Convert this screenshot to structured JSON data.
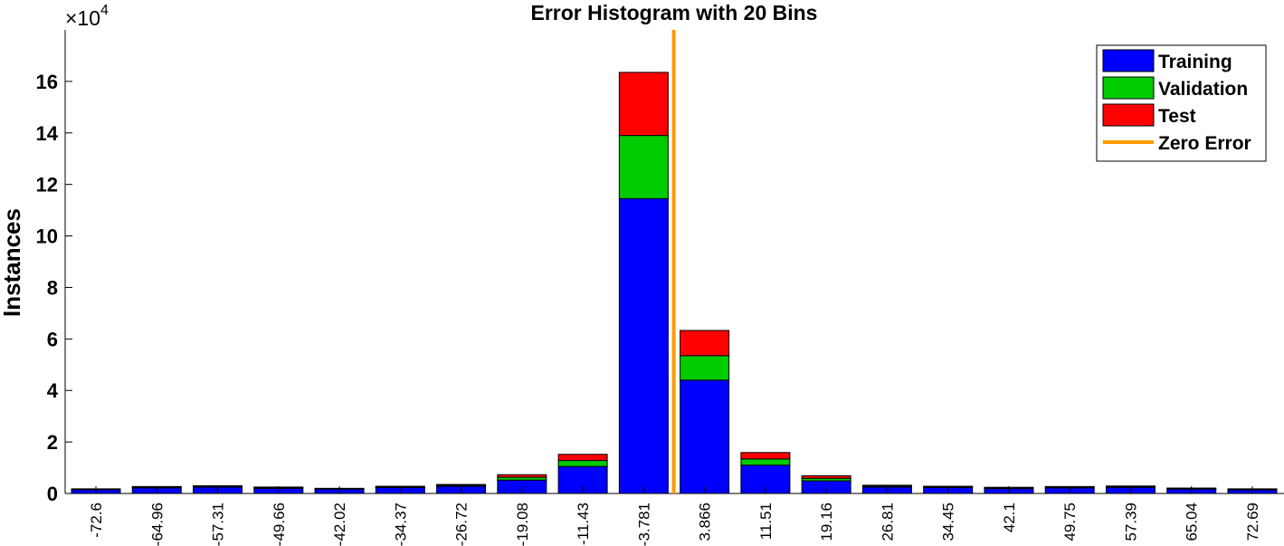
{
  "chart_data": {
    "type": "bar",
    "title": "Error Histogram with 20 Bins",
    "ylabel": "Instances",
    "xlabel": "",
    "y_multiplier_label": "×10",
    "y_multiplier_exponent": "4",
    "ylim": [
      0,
      180000
    ],
    "y_ticks": [
      0,
      20000,
      40000,
      60000,
      80000,
      100000,
      120000,
      140000,
      160000
    ],
    "y_tick_labels": [
      "0",
      "2",
      "4",
      "6",
      "8",
      "10",
      "12",
      "14",
      "16"
    ],
    "categories": [
      "-72.6",
      "-64.96",
      "-57.31",
      "-49.66",
      "-42.02",
      "-34.37",
      "-26.72",
      "-19.08",
      "-11.43",
      "-3.781",
      "3.866",
      "11.51",
      "19.16",
      "26.81",
      "34.45",
      "42.1",
      "49.75",
      "57.39",
      "65.04",
      "72.69"
    ],
    "stacked": true,
    "series": [
      {
        "name": "Training",
        "color": "#0000ff",
        "values": [
          1500,
          2200,
          2500,
          2000,
          1700,
          2300,
          2800,
          5200,
          10500,
          114500,
          44000,
          11000,
          4900,
          2500,
          2300,
          1900,
          2200,
          2400,
          1700,
          1400
        ]
      },
      {
        "name": "Validation",
        "color": "#00cc00",
        "values": [
          200,
          300,
          300,
          300,
          200,
          300,
          400,
          1100,
          2300,
          24500,
          9500,
          2400,
          1000,
          400,
          300,
          300,
          300,
          300,
          300,
          300
        ]
      },
      {
        "name": "Test",
        "color": "#ff0000",
        "values": [
          100,
          200,
          200,
          200,
          100,
          200,
          300,
          1000,
          2400,
          24500,
          9800,
          2500,
          1000,
          300,
          200,
          200,
          200,
          200,
          100,
          100
        ]
      }
    ],
    "reference_line": {
      "name": "Zero Error",
      "x_between": [
        "-3.781",
        "3.866"
      ],
      "color": "#ff9900"
    },
    "legend_position": "top-right",
    "grid": false
  }
}
